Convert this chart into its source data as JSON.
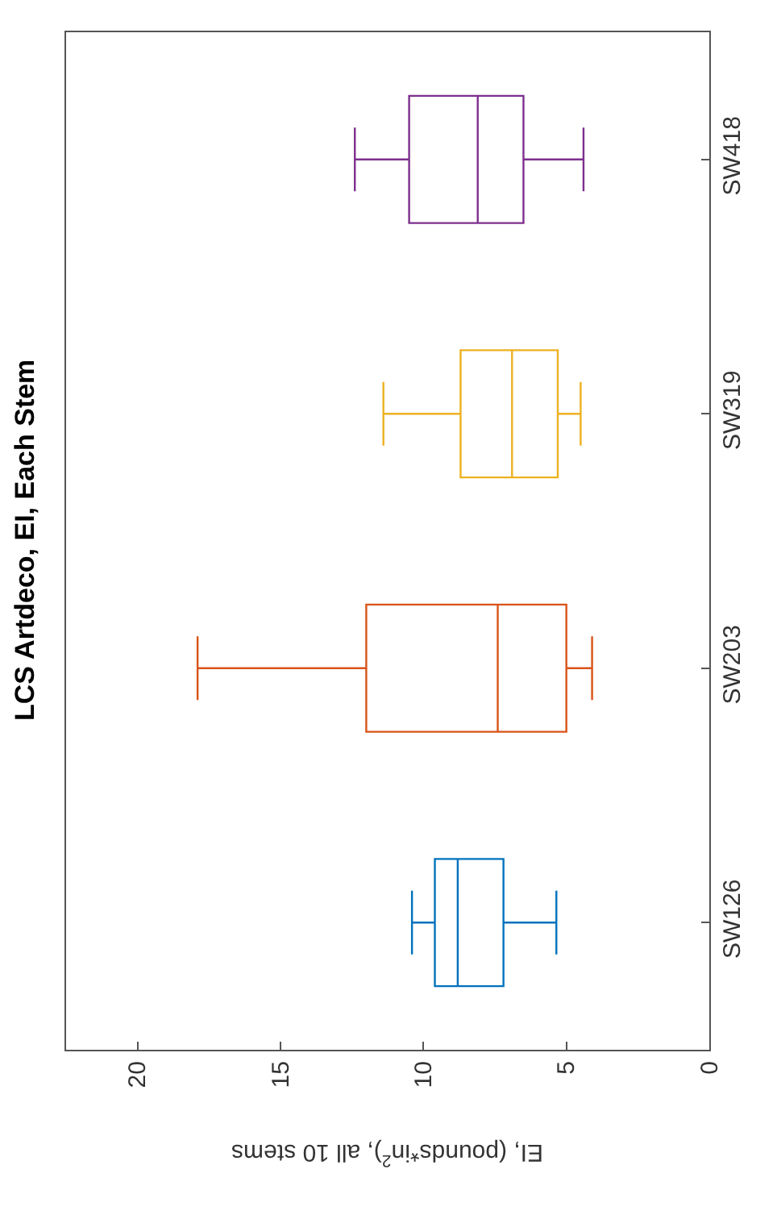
{
  "chart_data": {
    "type": "box",
    "title": "LCS Artdeco, EI, Each Stem",
    "xlabel": "EI, (pounds*in$^{2}$), all 10 stems",
    "orientation": "horizontal",
    "categories": [
      "SW418",
      "SW319",
      "SW203",
      "SW126"
    ],
    "colors": [
      "#7e2f8e",
      "#edb120",
      "#d95319",
      "#0072bd"
    ],
    "boxes": [
      {
        "low": 4.4,
        "q1": 6.5,
        "median": 8.1,
        "q3": 10.5,
        "high": 12.4
      },
      {
        "low": 4.5,
        "q1": 5.3,
        "median": 6.9,
        "q3": 8.7,
        "high": 11.4
      },
      {
        "low": 4.1,
        "q1": 5.0,
        "median": 7.4,
        "q3": 12.0,
        "high": 17.9
      },
      {
        "low": 5.35,
        "q1": 7.2,
        "median": 8.8,
        "q3": 9.6,
        "high": 10.4
      }
    ],
    "xlim": [
      22.5,
      0
    ],
    "xticks": [
      0,
      5,
      10,
      15,
      20
    ]
  }
}
